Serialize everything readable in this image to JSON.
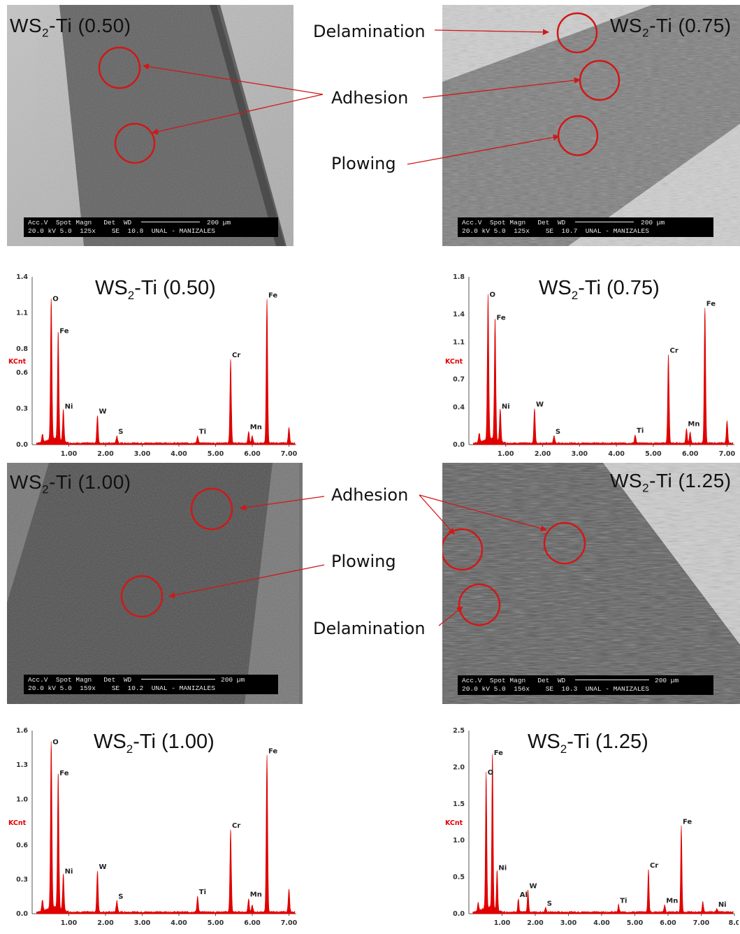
{
  "annotations": {
    "delamination": "Delamination",
    "adhesion": "Adhesion",
    "plowing": "Plowing"
  },
  "sem_images": [
    {
      "title_pre": "WS",
      "title_sub": "2",
      "title_post": "-Ti (0.50)",
      "bar_line1": "Acc.V  Spot Magn   Det  WD",
      "bar_line2": "20.0 kV 5.0  125x    SE  10.8  UNAL - MANIZALES",
      "scale": "200 µm"
    },
    {
      "title_pre": "WS",
      "title_sub": "2",
      "title_post": "-Ti (0.75)",
      "bar_line1": "Acc.V  Spot Magn   Det  WD",
      "bar_line2": "20.0 kV 5.0  125x    SE  10.7  UNAL - MANIZALES",
      "scale": "200 µm"
    },
    {
      "title_pre": "WS",
      "title_sub": "2",
      "title_post": "-Ti (1.00)",
      "bar_line1": "Acc.V  Spot Magn   Det  WD",
      "bar_line2": "20.0 kV 5.0  159x    SE  10.2  UNAL - MANIZALES",
      "scale": "200 µm"
    },
    {
      "title_pre": "WS",
      "title_sub": "2",
      "title_post": "-Ti (1.25)",
      "bar_line1": "Acc.V  Spot Magn   Det  WD",
      "bar_line2": "20.0 kV 5.0  156x    SE  10.3  UNAL - MANIZALES",
      "scale": "200 µm"
    }
  ],
  "colors": {
    "peak": "#e00000",
    "axis": "#555555",
    "kcnt": "#e00000",
    "circle": "#d01818"
  },
  "chart_data": [
    {
      "type": "area",
      "title": "WS2-Ti (0.50)",
      "title_pre": "WS",
      "title_sub": "2",
      "title_post": "-Ti (0.50)",
      "ylabel": "KCnt",
      "xlim": [
        0,
        7.2
      ],
      "ylim": [
        0,
        1.4
      ],
      "xticks": [
        "1.00",
        "2.00",
        "3.00",
        "4.00",
        "5.00",
        "6.00",
        "7.00"
      ],
      "yticks": [
        {
          "v": 0,
          "t": "0.0"
        },
        {
          "v": 0.3,
          "t": "0.3"
        },
        {
          "v": 0.6,
          "t": "0.6"
        },
        {
          "v": 0.8,
          "t": "0.8"
        },
        {
          "v": 1.1,
          "t": "1.1"
        },
        {
          "v": 1.4,
          "t": "1.4"
        }
      ],
      "peaks": [
        {
          "label": "O",
          "x": 0.52,
          "y": 1.17
        },
        {
          "label": "Fe",
          "x": 0.71,
          "y": 0.9
        },
        {
          "label": "Ni",
          "x": 0.85,
          "y": 0.27
        },
        {
          "label": "W",
          "x": 1.78,
          "y": 0.23
        },
        {
          "label": "S",
          "x": 2.31,
          "y": 0.06
        },
        {
          "label": "Ti",
          "x": 4.51,
          "y": 0.06
        },
        {
          "label": "Cr",
          "x": 5.41,
          "y": 0.7
        },
        {
          "label": "Mn",
          "x": 5.9,
          "y": 0.1
        },
        {
          "label": "Fe",
          "x": 6.4,
          "y": 1.2
        }
      ],
      "extra_peaks": [
        {
          "x": 0.28,
          "y": 0.07
        },
        {
          "x": 7.0,
          "y": 0.13
        },
        {
          "x": 6.0,
          "y": 0.06
        }
      ]
    },
    {
      "type": "area",
      "title": "WS2-Ti (0.75)",
      "title_pre": "WS",
      "title_sub": "2",
      "title_post": "-Ti (0.75)",
      "ylabel": "KCnt",
      "xlim": [
        0,
        7.2
      ],
      "ylim": [
        0,
        1.8
      ],
      "xticks": [
        "1.00",
        "2.00",
        "3.00",
        "4.00",
        "5.00",
        "6.00",
        "7.00"
      ],
      "yticks": [
        {
          "v": 0,
          "t": "0.0"
        },
        {
          "v": 0.4,
          "t": "0.4"
        },
        {
          "v": 0.7,
          "t": "0.7"
        },
        {
          "v": 1.1,
          "t": "1.1"
        },
        {
          "v": 1.4,
          "t": "1.4"
        },
        {
          "v": 1.8,
          "t": "1.8"
        }
      ],
      "peaks": [
        {
          "label": "O",
          "x": 0.52,
          "y": 1.55
        },
        {
          "label": "Fe",
          "x": 0.71,
          "y": 1.3
        },
        {
          "label": "Ni",
          "x": 0.85,
          "y": 0.35
        },
        {
          "label": "W",
          "x": 1.78,
          "y": 0.37
        },
        {
          "label": "S",
          "x": 2.31,
          "y": 0.08
        },
        {
          "label": "Ti",
          "x": 4.51,
          "y": 0.09
        },
        {
          "label": "Cr",
          "x": 5.41,
          "y": 0.95
        },
        {
          "label": "Mn",
          "x": 5.9,
          "y": 0.16
        },
        {
          "label": "Fe",
          "x": 6.4,
          "y": 1.45
        }
      ],
      "extra_peaks": [
        {
          "x": 0.28,
          "y": 0.1
        },
        {
          "x": 7.0,
          "y": 0.24
        },
        {
          "x": 6.0,
          "y": 0.12
        }
      ]
    },
    {
      "type": "area",
      "title": "WS2-Ti (1.00)",
      "title_pre": "WS",
      "title_sub": "2",
      "title_post": "-Ti (1.00)",
      "ylabel": "KCnt",
      "xlim": [
        0,
        7.2
      ],
      "ylim": [
        0,
        1.6
      ],
      "xticks": [
        "1.00",
        "2.00",
        "3.00",
        "4.00",
        "5.00",
        "6.00",
        "7.00"
      ],
      "yticks": [
        {
          "v": 0,
          "t": "0.0"
        },
        {
          "v": 0.3,
          "t": "0.3"
        },
        {
          "v": 0.6,
          "t": "0.6"
        },
        {
          "v": 1.0,
          "t": "1.0"
        },
        {
          "v": 1.3,
          "t": "1.3"
        },
        {
          "v": 1.6,
          "t": "1.6"
        }
      ],
      "peaks": [
        {
          "label": "O",
          "x": 0.52,
          "y": 1.45
        },
        {
          "label": "Fe",
          "x": 0.71,
          "y": 1.18
        },
        {
          "label": "Ni",
          "x": 0.85,
          "y": 0.32
        },
        {
          "label": "W",
          "x": 1.78,
          "y": 0.36
        },
        {
          "label": "S",
          "x": 2.31,
          "y": 0.1
        },
        {
          "label": "Ti",
          "x": 4.51,
          "y": 0.14
        },
        {
          "label": "Cr",
          "x": 5.41,
          "y": 0.72
        },
        {
          "label": "Mn",
          "x": 5.9,
          "y": 0.12
        },
        {
          "label": "Fe",
          "x": 6.4,
          "y": 1.37
        }
      ],
      "extra_peaks": [
        {
          "x": 0.28,
          "y": 0.1
        },
        {
          "x": 7.0,
          "y": 0.2
        },
        {
          "x": 6.0,
          "y": 0.06
        }
      ]
    },
    {
      "type": "area",
      "title": "WS2-Ti (1.25)",
      "title_pre": "WS",
      "title_sub": "2",
      "title_post": "-Ti (1.25)",
      "ylabel": "KCnt",
      "xlim": [
        0,
        8.0
      ],
      "ylim": [
        0,
        2.5
      ],
      "xticks": [
        "1.00",
        "2.00",
        "3.00",
        "4.00",
        "5.00",
        "6.00",
        "7.00",
        "8.0"
      ],
      "yticks": [
        {
          "v": 0,
          "t": "0.0"
        },
        {
          "v": 0.5,
          "t": "0.5"
        },
        {
          "v": 1.0,
          "t": "1.0"
        },
        {
          "v": 1.5,
          "t": "1.5"
        },
        {
          "v": 2.0,
          "t": "2.0"
        },
        {
          "v": 2.5,
          "t": "2.5"
        }
      ],
      "peaks": [
        {
          "label": "O",
          "x": 0.52,
          "y": 1.85
        },
        {
          "label": "Fe",
          "x": 0.71,
          "y": 2.12
        },
        {
          "label": "Ni",
          "x": 0.85,
          "y": 0.55
        },
        {
          "label": "Al",
          "x": 1.49,
          "y": 0.18
        },
        {
          "label": "W",
          "x": 1.78,
          "y": 0.3
        },
        {
          "label": "S",
          "x": 2.31,
          "y": 0.06
        },
        {
          "label": "Ti",
          "x": 4.51,
          "y": 0.1
        },
        {
          "label": "Cr",
          "x": 5.41,
          "y": 0.58
        },
        {
          "label": "Mn",
          "x": 5.9,
          "y": 0.1
        },
        {
          "label": "Fe",
          "x": 6.4,
          "y": 1.18
        },
        {
          "label": "Ni",
          "x": 7.47,
          "y": 0.05
        }
      ],
      "extra_peaks": [
        {
          "x": 0.28,
          "y": 0.12
        },
        {
          "x": 7.05,
          "y": 0.14
        }
      ]
    }
  ]
}
